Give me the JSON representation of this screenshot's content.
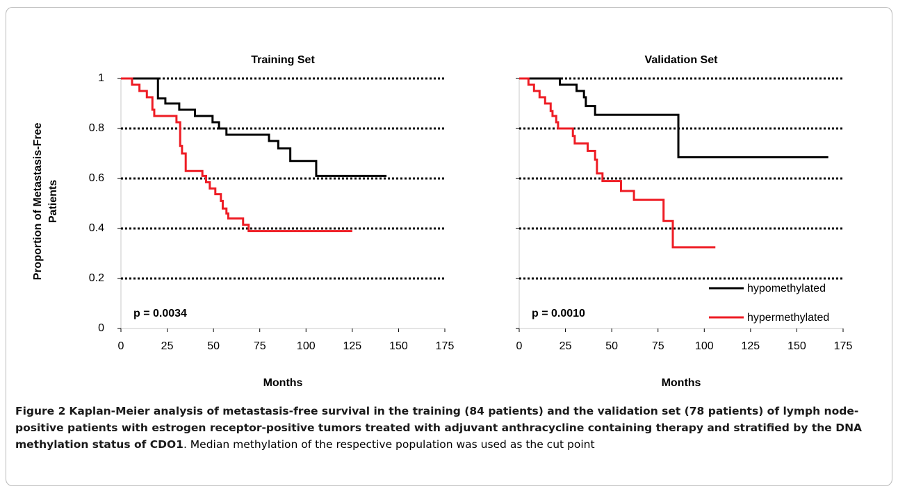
{
  "chart_data": [
    {
      "type": "step",
      "title": "Training Set",
      "xlabel": "Months",
      "ylabel": [
        "Proportion of Metastasis-Free",
        "Patients"
      ],
      "xlim": [
        0,
        175
      ],
      "ylim": [
        0,
        1
      ],
      "xticks": [
        0,
        25,
        50,
        75,
        100,
        125,
        150,
        175
      ],
      "yticks": [
        0,
        0.2,
        0.4,
        0.6,
        0.8,
        1
      ],
      "ytick_labels": true,
      "grid": true,
      "annotation": "p = 0.0034",
      "series": [
        {
          "name": "hypomethylated",
          "color": "#000000",
          "x": [
            0,
            20,
            24,
            31.5,
            40,
            49.5,
            53,
            57,
            80,
            85,
            91.5,
            105.5,
            143.5
          ],
          "values": [
            1,
            0.92,
            0.9,
            0.875,
            0.85,
            0.825,
            0.8,
            0.775,
            0.75,
            0.72,
            0.67,
            0.61,
            0.61
          ]
        },
        {
          "name": "hypermethylated",
          "color": "#ee1c24",
          "x": [
            0,
            6,
            10,
            14,
            17,
            18,
            30,
            32,
            33,
            35,
            44,
            46,
            48,
            51,
            54,
            55,
            57,
            58,
            66,
            69,
            125
          ],
          "values": [
            1,
            0.975,
            0.95,
            0.925,
            0.875,
            0.85,
            0.825,
            0.73,
            0.7,
            0.63,
            0.61,
            0.585,
            0.56,
            0.537,
            0.51,
            0.48,
            0.46,
            0.44,
            0.415,
            0.39,
            0.39
          ]
        }
      ]
    },
    {
      "type": "step",
      "title": "Validation Set",
      "xlabel": "Months",
      "xlim": [
        0,
        175
      ],
      "ylim": [
        0,
        1
      ],
      "xticks": [
        0,
        25,
        50,
        75,
        100,
        125,
        150,
        175
      ],
      "yticks": [
        0,
        0.2,
        0.4,
        0.6,
        0.8,
        1
      ],
      "ytick_labels": false,
      "grid": true,
      "annotation": "p = 0.0010",
      "legend": "lower right",
      "series": [
        {
          "name": "hypomethylated",
          "color": "#000000",
          "x": [
            0,
            22,
            31,
            35,
            36,
            41,
            86,
            167
          ],
          "values": [
            1,
            0.975,
            0.95,
            0.925,
            0.89,
            0.855,
            0.685,
            0.685
          ]
        },
        {
          "name": "hypermethylated",
          "color": "#ee1c24",
          "x": [
            0,
            5,
            8,
            11,
            14,
            17,
            18,
            20,
            21,
            29,
            30,
            37,
            41,
            42,
            45,
            55,
            62,
            78,
            83,
            106
          ],
          "values": [
            1,
            0.975,
            0.95,
            0.925,
            0.9,
            0.87,
            0.85,
            0.825,
            0.8,
            0.77,
            0.74,
            0.71,
            0.675,
            0.62,
            0.59,
            0.55,
            0.515,
            0.43,
            0.325,
            0.325
          ]
        }
      ]
    }
  ],
  "caption": {
    "label": "Figure 2",
    "bold": "Kaplan-Meier analysis of metastasis-free survival in the training (84 patients) and the validation set (78 patients) of lymph node-positive patients with estrogen receptor-positive tumors treated with adjuvant anthracycline containing therapy and stratified by the DNA methylation status of CDO1",
    "text": ". Median methylation of the respective population was used as the cut point"
  }
}
